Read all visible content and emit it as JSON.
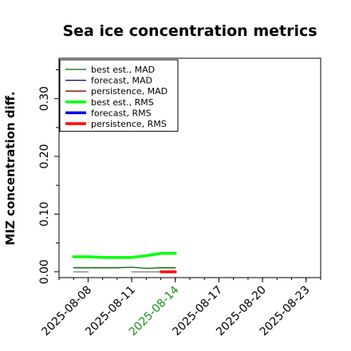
{
  "chart_data": {
    "type": "line",
    "title": "Sea ice concentration metrics",
    "ylabel": "MIZ concentration diff.",
    "xlabel": "",
    "x_ticks": [
      "2025-08-08",
      "2025-08-11",
      "2025-08-14",
      "2025-08-17",
      "2025-08-20",
      "2025-08-23"
    ],
    "x_tick_highlight": "2025-08-14",
    "x_tick_highlight_color": "#228B22",
    "xlim": [
      "2025-08-06",
      "2025-08-24"
    ],
    "y_ticks": [
      "0.00",
      "0.10",
      "0.20",
      "0.30"
    ],
    "ylim": [
      -0.01,
      0.37
    ],
    "grid": false,
    "legend_position": "top-left",
    "series": [
      {
        "name": "best est., MAD",
        "color": "#006400",
        "width": 1.3,
        "x": [
          "2025-08-07",
          "2025-08-08",
          "2025-08-09",
          "2025-08-10",
          "2025-08-11",
          "2025-08-12",
          "2025-08-13",
          "2025-08-14"
        ],
        "y": [
          0.007,
          0.007,
          0.007,
          0.007,
          0.008,
          0.006,
          0.007,
          0.007
        ]
      },
      {
        "name": "forecast,  MAD",
        "color": "#000080",
        "width": 1.3,
        "x": [],
        "y": []
      },
      {
        "name": "persistence, MAD",
        "color": "#8B0000",
        "width": 1.3,
        "x": [],
        "y": []
      },
      {
        "name": "best est., RMS",
        "color": "#00FF00",
        "width": 3.5,
        "x": [
          "2025-08-07",
          "2025-08-08",
          "2025-08-09",
          "2025-08-10",
          "2025-08-11",
          "2025-08-12",
          "2025-08-13",
          "2025-08-14"
        ],
        "y": [
          0.026,
          0.026,
          0.025,
          0.025,
          0.025,
          0.028,
          0.032,
          0.032
        ]
      },
      {
        "name": "forecast,  RMS",
        "color": "#0000FF",
        "width": 3.5,
        "x": [],
        "y": []
      },
      {
        "name": "persistence, RMS",
        "color": "#FF0000",
        "width": 3.5,
        "x": [
          "2025-08-13",
          "2025-08-14"
        ],
        "y": [
          0.0,
          0.0
        ]
      },
      {
        "name": "",
        "color": "#808080",
        "width": 1.3,
        "x": [
          "2025-08-07",
          "2025-08-08"
        ],
        "y": [
          0.0,
          0.0
        ]
      },
      {
        "name": "",
        "color": "#808080",
        "width": 1.3,
        "x": [
          "2025-08-11",
          "2025-08-13"
        ],
        "y": [
          0.0,
          0.0
        ]
      }
    ]
  }
}
